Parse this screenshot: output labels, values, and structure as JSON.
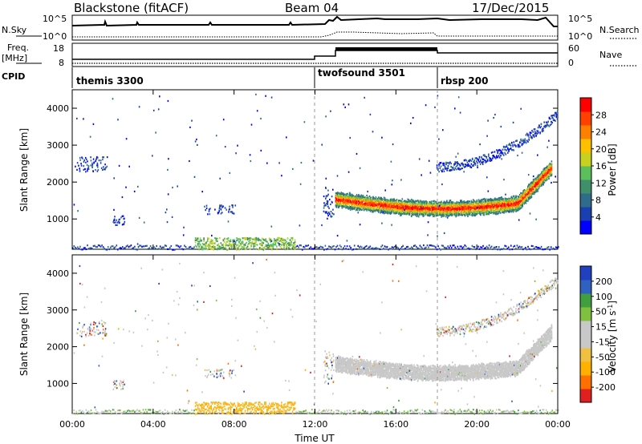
{
  "header": {
    "site": "Blackstone (fitACF)",
    "beam": "Beam 04",
    "date": "17/Dec/2015"
  },
  "labels": {
    "nsky": "N.Sky",
    "nsearch": "N.Search",
    "freq_line1": "Freq.",
    "freq_line2": "[MHz]",
    "nave": "Nave",
    "cpid": "CPID",
    "noise_tick_hi": "10^5",
    "noise_tick_lo": "10^0",
    "freq_tick_18": "18",
    "freq_tick_8": "8",
    "nave_tick_60": "60",
    "nave_tick_0": "0"
  },
  "cpid_segments": [
    {
      "label": "themis 3300",
      "start_hour": 0
    },
    {
      "label": "twofsound 3501",
      "start_hour": 12
    },
    {
      "label": "rbsp 200",
      "start_hour": 18
    }
  ],
  "colors": {
    "power_scale": [
      "#0000ff",
      "#1a3fb0",
      "#2f6b8a",
      "#3f8f6a",
      "#5bbf5b",
      "#c8d020",
      "#ffc000",
      "#ff8000",
      "#ff4000",
      "#ff0000"
    ],
    "velocity_scale": [
      "#e02020",
      "#ff7000",
      "#ffb000",
      "#f0c040",
      "#c8c8c8",
      "#c8c8c8",
      "#80c040",
      "#40a040",
      "#3060c0",
      "#2040c0"
    ]
  },
  "chart_data": [
    {
      "type": "heatmap",
      "panel": "power",
      "xlabel": "",
      "ylabel": "Slant Range [km]",
      "xlim": [
        0,
        24
      ],
      "ylim": [
        180,
        4500
      ],
      "yticks": [
        "1000",
        "2000",
        "3000",
        "4000"
      ],
      "colorbar": {
        "label": "Power [dB]",
        "ticks": [
          "4",
          "8",
          "12",
          "16",
          "20",
          "24",
          "28"
        ],
        "range": [
          0,
          30
        ]
      }
    },
    {
      "type": "heatmap",
      "panel": "velocity",
      "xlabel": "Time UT",
      "ylabel": "Slant Range [km]",
      "xlim": [
        0,
        24
      ],
      "ylim": [
        180,
        4500
      ],
      "xticks": [
        "00:00",
        "04:00",
        "08:00",
        "12:00",
        "16:00",
        "20:00",
        "00:00"
      ],
      "yticks": [
        "1000",
        "2000",
        "3000",
        "4000"
      ],
      "colorbar": {
        "label": "Velocity [m s^-1]",
        "ticks": [
          "200",
          "100",
          "50",
          "15",
          "-15",
          "-50",
          "-100",
          "-200"
        ],
        "range": [
          -250,
          250
        ]
      }
    }
  ]
}
